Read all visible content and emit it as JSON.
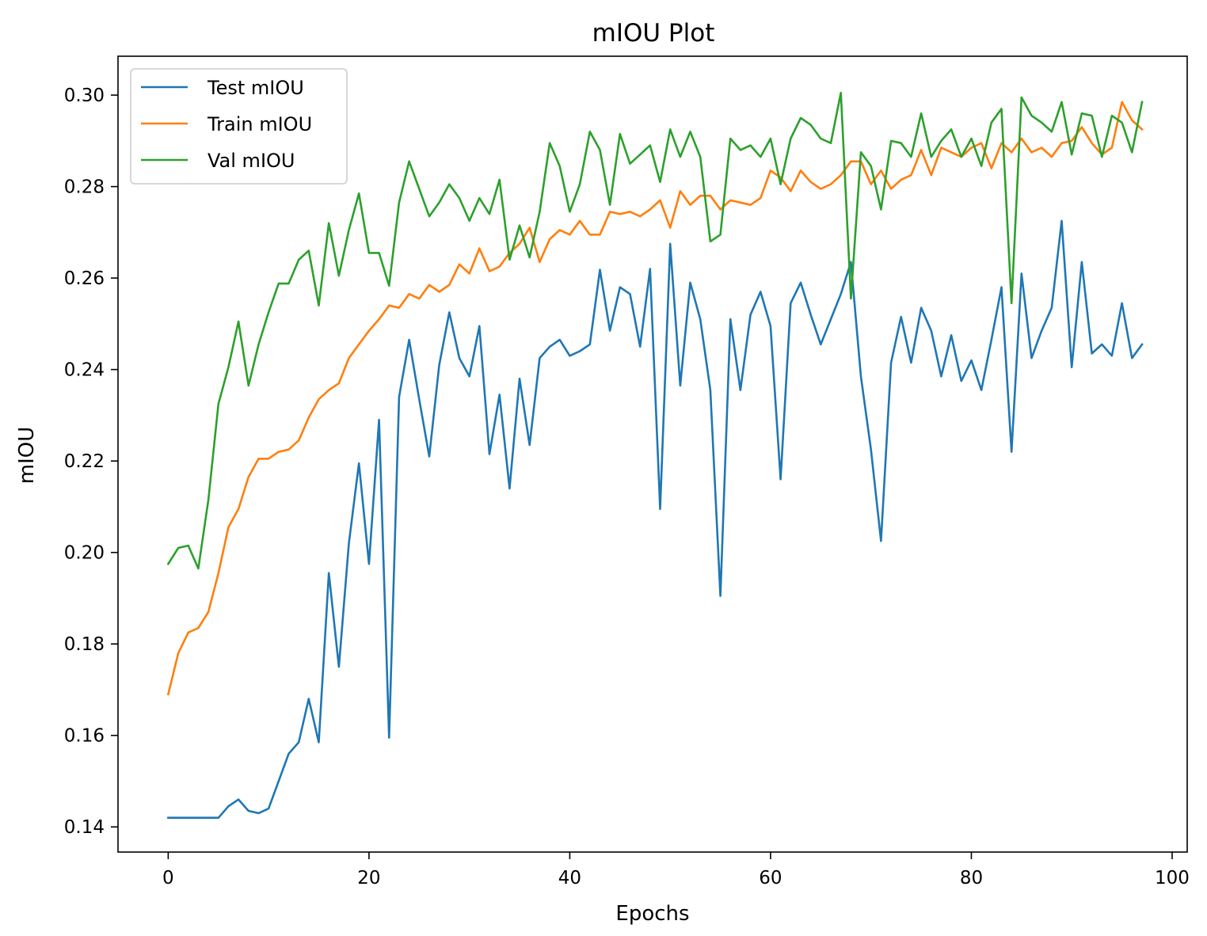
{
  "chart_data": {
    "type": "line",
    "title": "mIOU Plot",
    "xlabel": "Epochs",
    "ylabel": "mIOU",
    "xlim": [
      -5,
      101.5
    ],
    "ylim": [
      0.1345,
      0.3085
    ],
    "xticks": [
      0,
      20,
      40,
      60,
      80,
      100
    ],
    "xtick_labels": [
      "0",
      "20",
      "40",
      "60",
      "80",
      "100"
    ],
    "yticks": [
      0.14,
      0.16,
      0.18,
      0.2,
      0.22,
      0.24,
      0.26,
      0.28,
      0.3
    ],
    "ytick_labels": [
      "0.14",
      "0.16",
      "0.18",
      "0.20",
      "0.22",
      "0.24",
      "0.26",
      "0.28",
      "0.30"
    ],
    "grid": false,
    "legend_position": "top-left",
    "x": [
      0,
      1,
      2,
      3,
      4,
      5,
      6,
      7,
      8,
      9,
      10,
      11,
      12,
      13,
      14,
      15,
      16,
      17,
      18,
      19,
      20,
      21,
      22,
      23,
      24,
      25,
      26,
      27,
      28,
      29,
      30,
      31,
      32,
      33,
      34,
      35,
      36,
      37,
      38,
      39,
      40,
      41,
      42,
      43,
      44,
      45,
      46,
      47,
      48,
      49,
      50,
      51,
      52,
      53,
      54,
      55,
      56,
      57,
      58,
      59,
      60,
      61,
      62,
      63,
      64,
      65,
      66,
      67,
      68,
      69,
      70,
      71,
      72,
      73,
      74,
      75,
      76,
      77,
      78,
      79,
      80,
      81,
      82,
      83,
      84,
      85,
      86,
      87,
      88,
      89,
      90,
      91,
      92,
      93,
      94,
      95,
      96,
      97
    ],
    "series": [
      {
        "name": "Test mIOU",
        "color": "#1f77b4",
        "values": [
          0.142,
          0.142,
          0.142,
          0.142,
          0.142,
          0.142,
          0.1445,
          0.146,
          0.1435,
          0.143,
          0.144,
          0.15,
          0.156,
          0.1585,
          0.168,
          0.1585,
          0.1955,
          0.175,
          0.202,
          0.2195,
          0.1975,
          0.229,
          0.1595,
          0.234,
          0.2465,
          0.2335,
          0.221,
          0.241,
          0.2525,
          0.2425,
          0.2385,
          0.2495,
          0.2215,
          0.2345,
          0.214,
          0.238,
          0.2235,
          0.2425,
          0.245,
          0.2465,
          0.243,
          0.244,
          0.2455,
          0.2618,
          0.2485,
          0.258,
          0.2565,
          0.245,
          0.262,
          0.2095,
          0.2675,
          0.2365,
          0.259,
          0.251,
          0.2355,
          0.1905,
          0.251,
          0.2355,
          0.252,
          0.257,
          0.2495,
          0.216,
          0.2545,
          0.259,
          0.252,
          0.2455,
          0.251,
          0.2565,
          0.2635,
          0.2385,
          0.2225,
          0.2025,
          0.2415,
          0.2515,
          0.2415,
          0.2535,
          0.2485,
          0.2385,
          0.2475,
          0.2375,
          0.242,
          0.2355,
          0.2465,
          0.258,
          0.222,
          0.261,
          0.2425,
          0.2485,
          0.2535,
          0.2725,
          0.2405,
          0.2635,
          0.2435,
          0.2455,
          0.243,
          0.2545,
          0.2425,
          0.2455
        ]
      },
      {
        "name": "Train mIOU",
        "color": "#ff7f0e",
        "values": [
          0.169,
          0.178,
          0.1825,
          0.1835,
          0.187,
          0.1955,
          0.2055,
          0.2095,
          0.2165,
          0.2205,
          0.2205,
          0.222,
          0.2225,
          0.2245,
          0.2295,
          0.2335,
          0.2355,
          0.237,
          0.2425,
          0.2455,
          0.2485,
          0.251,
          0.254,
          0.2535,
          0.2565,
          0.2555,
          0.2585,
          0.257,
          0.2585,
          0.263,
          0.261,
          0.2665,
          0.2615,
          0.2625,
          0.2655,
          0.2675,
          0.271,
          0.2635,
          0.2685,
          0.2705,
          0.2695,
          0.2725,
          0.2695,
          0.2695,
          0.2745,
          0.274,
          0.2745,
          0.2735,
          0.275,
          0.277,
          0.271,
          0.279,
          0.276,
          0.278,
          0.278,
          0.275,
          0.277,
          0.2765,
          0.276,
          0.2775,
          0.2835,
          0.282,
          0.279,
          0.2835,
          0.281,
          0.2795,
          0.2805,
          0.2825,
          0.2855,
          0.2855,
          0.2805,
          0.2835,
          0.2795,
          0.2815,
          0.2825,
          0.288,
          0.2825,
          0.2885,
          0.2875,
          0.2865,
          0.2885,
          0.2895,
          0.284,
          0.2895,
          0.2875,
          0.2905,
          0.2875,
          0.2885,
          0.2865,
          0.2895,
          0.29,
          0.293,
          0.2895,
          0.287,
          0.2885,
          0.2985,
          0.2945,
          0.2925
        ]
      },
      {
        "name": "Val mIOU",
        "color": "#2ca02c",
        "values": [
          0.1975,
          0.201,
          0.2015,
          0.1965,
          0.2115,
          0.2325,
          0.2405,
          0.2505,
          0.2365,
          0.2455,
          0.2525,
          0.2588,
          0.2588,
          0.264,
          0.266,
          0.254,
          0.272,
          0.2605,
          0.2705,
          0.2785,
          0.2655,
          0.2655,
          0.2583,
          0.2765,
          0.2855,
          0.2795,
          0.2735,
          0.2765,
          0.2805,
          0.2775,
          0.2725,
          0.2775,
          0.274,
          0.2815,
          0.264,
          0.2715,
          0.2645,
          0.2745,
          0.2895,
          0.2845,
          0.2745,
          0.2805,
          0.292,
          0.288,
          0.276,
          0.2915,
          0.285,
          0.287,
          0.289,
          0.281,
          0.2925,
          0.2865,
          0.292,
          0.2865,
          0.268,
          0.2695,
          0.2905,
          0.288,
          0.289,
          0.2865,
          0.2905,
          0.2805,
          0.2905,
          0.295,
          0.2935,
          0.2905,
          0.2895,
          0.3005,
          0.2555,
          0.2875,
          0.2845,
          0.275,
          0.29,
          0.2895,
          0.2865,
          0.296,
          0.2865,
          0.29,
          0.2925,
          0.2865,
          0.2905,
          0.2845,
          0.294,
          0.297,
          0.2545,
          0.2995,
          0.2955,
          0.294,
          0.292,
          0.2985,
          0.287,
          0.296,
          0.2955,
          0.2865,
          0.2955,
          0.294,
          0.2875,
          0.2985
        ]
      }
    ]
  }
}
